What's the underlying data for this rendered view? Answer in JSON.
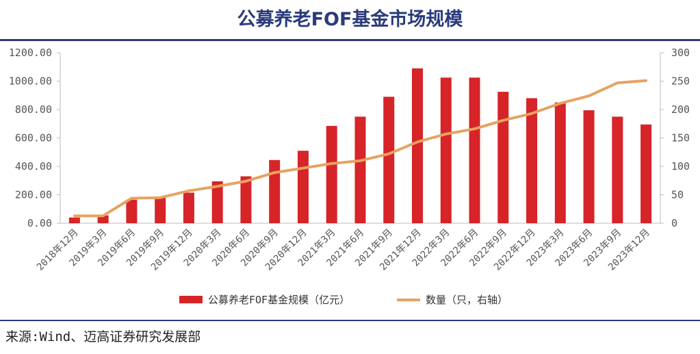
{
  "title": "公募养老FOF基金市场规模",
  "source": "来源:Wind、迈高证券研究发展部",
  "colors": {
    "bar": "#d62428",
    "line": "#e7a262",
    "title": "#2a3a7c",
    "axis": "#bbbbbb",
    "text": "#555555"
  },
  "chart_data": {
    "type": "bar",
    "title": "公募养老FOF基金市场规模",
    "categories": [
      "2018年12月",
      "2019年3月",
      "2019年6月",
      "2019年9月",
      "2019年12月",
      "2020年3月",
      "2020年6月",
      "2020年9月",
      "2020年12月",
      "2021年3月",
      "2021年6月",
      "2021年9月",
      "2021年12月",
      "2022年3月",
      "2022年6月",
      "2022年9月",
      "2022年12月",
      "2023年3月",
      "2023年6月",
      "2023年9月",
      "2023年12月"
    ],
    "series": [
      {
        "name": "公募养老FOF基金规模（亿元）",
        "type": "bar",
        "axis": "left",
        "values": [
          40,
          55,
          165,
          185,
          215,
          295,
          330,
          445,
          510,
          685,
          750,
          890,
          1090,
          1025,
          1025,
          925,
          880,
          850,
          795,
          750,
          695
        ]
      },
      {
        "name": "数量（只，右轴）",
        "type": "line",
        "axis": "right",
        "values": [
          13,
          13,
          44,
          45,
          57,
          65,
          74,
          89,
          97,
          105,
          110,
          122,
          143,
          157,
          166,
          181,
          193,
          211,
          224,
          247,
          251
        ]
      }
    ],
    "ylim_left": [
      0,
      1200
    ],
    "yticks_left": [
      "0.00",
      "200.00",
      "400.00",
      "600.00",
      "800.00",
      "1000.00",
      "1200.00"
    ],
    "ylim_right": [
      0,
      300
    ],
    "yticks_right": [
      "0",
      "50",
      "100",
      "150",
      "200",
      "250",
      "300"
    ],
    "legend": {
      "bar": "公募养老FOF基金规模（亿元）",
      "line": "数量（只，右轴）",
      "position": "bottom"
    }
  }
}
